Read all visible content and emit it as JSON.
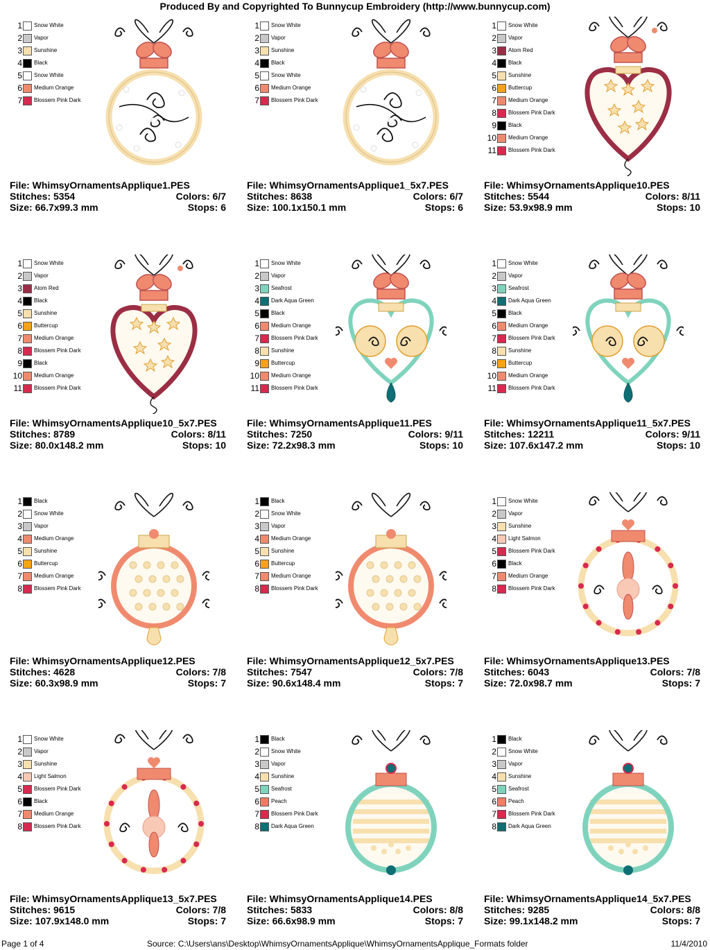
{
  "header": "Produced By and Copyrighted To Bunnycup Embroidery (http://www.bunnycup.com)",
  "labels": {
    "file": "File: ",
    "stitches": "Stitches: ",
    "colors": "Colors: ",
    "size": "Size: ",
    "stops": "Stops: "
  },
  "palette": {
    "Snow White": "#ffffff",
    "Vapor": "#c8c8c8",
    "Sunshine": "#f7dfae",
    "Black": "#000000",
    "Medium Orange": "#f08a6e",
    "Blossem Pink Dark": "#d8294f",
    "Atom Red": "#9b2e44",
    "Buttercup": "#f6a318",
    "Seafrost": "#7fd3bd",
    "Dark Aqua Green": "#0e6f74",
    "Light Salmon": "#f8c9b5",
    "Peach": "#f47b64"
  },
  "designs": [
    {
      "file": "WhimsyOrnamentsApplique1.PES",
      "stitches": "5354",
      "colors": "6/7",
      "size": "66.7x99.3 mm",
      "stops": "6",
      "art": "round-bow",
      "legend": [
        "Snow White",
        "Vapor",
        "Sunshine",
        "Black",
        "Snow White",
        "Medium Orange",
        "Blossem Pink Dark"
      ]
    },
    {
      "file": "WhimsyOrnamentsApplique1_5x7.PES",
      "stitches": "8638",
      "colors": "6/7",
      "size": "100.1x150.1 mm",
      "stops": "6",
      "art": "round-bow",
      "legend": [
        "Snow White",
        "Vapor",
        "Sunshine",
        "Black",
        "Snow White",
        "Medium Orange",
        "Blossem Pink Dark"
      ]
    },
    {
      "file": "WhimsyOrnamentsApplique10.PES",
      "stitches": "5544",
      "colors": "8/11",
      "size": "53.9x98.9 mm",
      "stops": "10",
      "art": "heart-stars",
      "legend": [
        "Snow White",
        "Vapor",
        "Atom Red",
        "Black",
        "Sunshine",
        "Buttercup",
        "Medium Orange",
        "Blossem Pink Dark",
        "Black",
        "Medium Orange",
        "Blossem Pink Dark"
      ]
    },
    {
      "file": "WhimsyOrnamentsApplique10_5x7.PES",
      "stitches": "8789",
      "colors": "8/11",
      "size": "80.0x148.2 mm",
      "stops": "10",
      "art": "heart-stars",
      "legend": [
        "Snow White",
        "Vapor",
        "Atom Red",
        "Black",
        "Sunshine",
        "Buttercup",
        "Medium Orange",
        "Blossem Pink Dark",
        "Black",
        "Medium Orange",
        "Blossem Pink Dark"
      ]
    },
    {
      "file": "WhimsyOrnamentsApplique11.PES",
      "stitches": "7250",
      "colors": "9/11",
      "size": "72.2x98.3 mm",
      "stops": "10",
      "art": "heart-spirals",
      "legend": [
        "Snow White",
        "Vapor",
        "Seafrost",
        "Dark Aqua Green",
        "Black",
        "Medium Orange",
        "Blossem Pink Dark",
        "Sunshine",
        "Buttercup",
        "Medium Orange",
        "Blossem Pink Dark"
      ]
    },
    {
      "file": "WhimsyOrnamentsApplique11_5x7.PES",
      "stitches": "12211",
      "colors": "9/11",
      "size": "107.6x147.2 mm",
      "stops": "10",
      "art": "heart-spirals",
      "legend": [
        "Snow White",
        "Vapor",
        "Seafrost",
        "Dark Aqua Green",
        "Black",
        "Medium Orange",
        "Blossem Pink Dark",
        "Sunshine",
        "Buttercup",
        "Medium Orange",
        "Blossem Pink Dark"
      ]
    },
    {
      "file": "WhimsyOrnamentsApplique12.PES",
      "stitches": "4628",
      "colors": "7/8",
      "size": "60.3x98.9 mm",
      "stops": "7",
      "art": "dotted-ball",
      "legend": [
        "Black",
        "Snow White",
        "Vapor",
        "Medium Orange",
        "Sunshine",
        "Buttercup",
        "Medium Orange",
        "Blossem Pink Dark"
      ]
    },
    {
      "file": "WhimsyOrnamentsApplique12_5x7.PES",
      "stitches": "7547",
      "colors": "7/8",
      "size": "90.6x148.4 mm",
      "stops": "7",
      "art": "dotted-ball",
      "legend": [
        "Black",
        "Snow White",
        "Vapor",
        "Medium Orange",
        "Sunshine",
        "Buttercup",
        "Medium Orange",
        "Blossem Pink Dark"
      ]
    },
    {
      "file": "WhimsyOrnamentsApplique13.PES",
      "stitches": "6043",
      "colors": "7/8",
      "size": "72.0x98.7 mm",
      "stops": "7",
      "art": "ring-flower",
      "legend": [
        "Snow White",
        "Vapor",
        "Sunshine",
        "Light Salmon",
        "Blossem Pink Dark",
        "Black",
        "Medium Orange",
        "Blossem Pink Dark"
      ]
    },
    {
      "file": "WhimsyOrnamentsApplique13_5x7.PES",
      "stitches": "9615",
      "colors": "7/8",
      "size": "107.9x148.0 mm",
      "stops": "7",
      "art": "ring-flower",
      "legend": [
        "Snow White",
        "Vapor",
        "Sunshine",
        "Light Salmon",
        "Blossem Pink Dark",
        "Black",
        "Medium Orange",
        "Blossem Pink Dark"
      ]
    },
    {
      "file": "WhimsyOrnamentsApplique14.PES",
      "stitches": "5833",
      "colors": "8/8",
      "size": "66.6x98.9 mm",
      "stops": "7",
      "art": "striped-ball",
      "legend": [
        "Black",
        "Snow White",
        "Vapor",
        "Sunshine",
        "Seafrost",
        "Peach",
        "Blossem Pink Dark",
        "Dark Aqua Green"
      ]
    },
    {
      "file": "WhimsyOrnamentsApplique14_5x7.PES",
      "stitches": "9285",
      "colors": "8/8",
      "size": "99.1x148.2 mm",
      "stops": "7",
      "art": "striped-ball",
      "legend": [
        "Black",
        "Snow White",
        "Vapor",
        "Sunshine",
        "Seafrost",
        "Peach",
        "Blossem Pink Dark",
        "Dark Aqua Green"
      ]
    }
  ],
  "footer": {
    "page": "Page 1 of 4",
    "source": "Source:  C:\\Users\\ans\\Desktop\\WhimsyOrnamentsApplique\\WhimsyOrnamentsApplique_Formats folder",
    "date": "11/4/2010"
  }
}
